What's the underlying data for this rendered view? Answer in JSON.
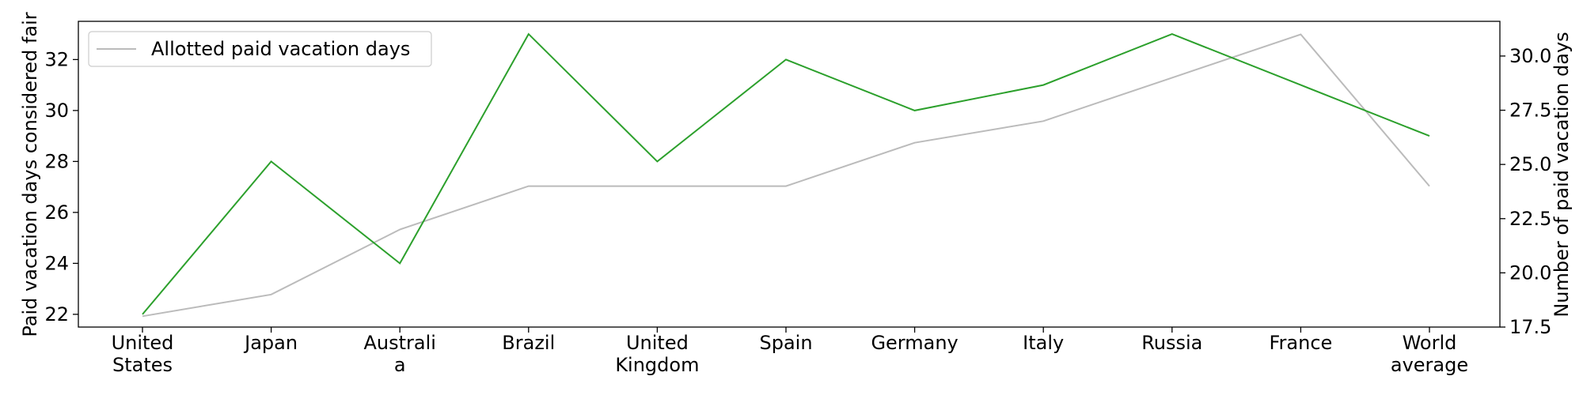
{
  "chart_data": {
    "type": "line",
    "categories": [
      [
        "United",
        "States"
      ],
      [
        "Japan"
      ],
      [
        "Australi",
        "a"
      ],
      [
        "Brazil"
      ],
      [
        "United",
        "Kingdom"
      ],
      [
        "Spain"
      ],
      [
        "Germany"
      ],
      [
        "Italy"
      ],
      [
        "Russia"
      ],
      [
        "France"
      ],
      [
        "World",
        "average"
      ]
    ],
    "left_axis": {
      "label": "Paid vacation days considered fair",
      "ylim": [
        21.5,
        33.5
      ],
      "ticks": [
        22,
        24,
        26,
        28,
        30,
        32
      ]
    },
    "right_axis": {
      "label": "Number of paid vacation days",
      "ylim": [
        17.5,
        31.6
      ],
      "ticks": [
        "17.5",
        "20.0",
        "22.5",
        "25.0",
        "27.5",
        "30.0"
      ]
    },
    "series": [
      {
        "axis": "left",
        "color": "#2ca02c",
        "values": [
          22,
          28,
          24,
          33,
          28,
          32,
          30,
          31,
          33,
          31,
          29
        ]
      },
      {
        "name": "Allotted paid vacation days",
        "axis": "right",
        "color": "#bbbbbb",
        "values": [
          18,
          19,
          22,
          24,
          24,
          24,
          26,
          27,
          29,
          31,
          24
        ]
      }
    ],
    "legend": {
      "position": "top-left",
      "entries": [
        "Allotted paid vacation days"
      ]
    },
    "grid": false
  }
}
